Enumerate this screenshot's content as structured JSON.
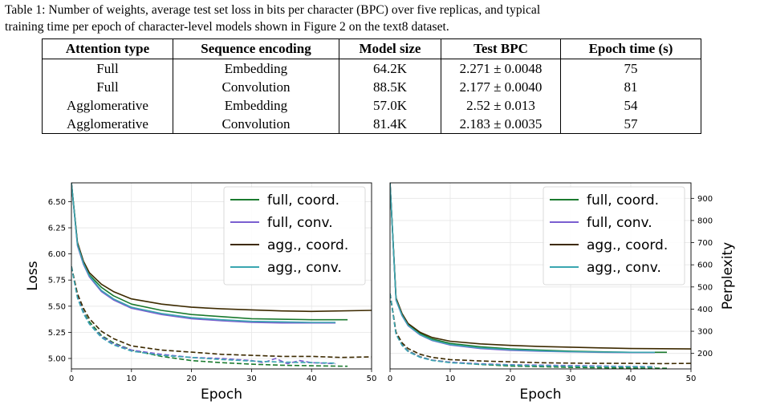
{
  "caption": {
    "line1": "Table 1: Number of weights, average test set loss in bits per character (BPC) over five replicas, and typical",
    "line2": "training time per epoch of character-level models shown in Figure 2 on the text8 dataset."
  },
  "table": {
    "headers": [
      "Attention type",
      "Sequence encoding",
      "Model size",
      "Test BPC",
      "Epoch time (s)"
    ],
    "rows": [
      [
        "Full",
        "Embedding",
        "64.2K",
        "2.271 ± 0.0048",
        "75"
      ],
      [
        "Full",
        "Convolution",
        "88.5K",
        "2.177 ± 0.0040",
        "81"
      ],
      [
        "Agglomerative",
        "Embedding",
        "57.0K",
        "2.52 ± 0.013",
        "54"
      ],
      [
        "Agglomerative",
        "Convolution",
        "81.4K",
        "2.183 ± 0.0035",
        "57"
      ]
    ]
  },
  "chart_data": [
    {
      "type": "line",
      "xlabel": "Epoch",
      "ylabel": "Loss",
      "xlim": [
        0,
        50
      ],
      "ylim": [
        4.9,
        6.68
      ],
      "xticks": [
        "0",
        "10",
        "20",
        "30",
        "40",
        "50"
      ],
      "yticks": [
        "5.00",
        "5.25",
        "5.50",
        "5.75",
        "6.00",
        "6.25",
        "6.50"
      ],
      "grid": true,
      "legend_position": "top-right",
      "series": [
        {
          "name": "full, coord.",
          "color": "#1a7a2e",
          "style": "solid",
          "x": [
            0,
            1,
            2,
            3,
            5,
            7,
            10,
            15,
            20,
            25,
            30,
            35,
            40,
            46
          ],
          "y": [
            6.68,
            6.1,
            5.92,
            5.8,
            5.68,
            5.6,
            5.52,
            5.46,
            5.42,
            5.4,
            5.38,
            5.375,
            5.37,
            5.37
          ]
        },
        {
          "name": "full, conv.",
          "color": "#7a5fd0",
          "style": "solid",
          "x": [
            0,
            1,
            2,
            3,
            5,
            7,
            10,
            15,
            20,
            25,
            30,
            35,
            40,
            44
          ],
          "y": [
            6.68,
            6.08,
            5.9,
            5.78,
            5.64,
            5.56,
            5.48,
            5.42,
            5.38,
            5.36,
            5.345,
            5.34,
            5.34,
            5.34
          ]
        },
        {
          "name": "agg., coord.",
          "color": "#3d2a00",
          "style": "solid",
          "x": [
            0,
            1,
            2,
            3,
            5,
            7,
            10,
            15,
            20,
            25,
            30,
            35,
            40,
            50
          ],
          "y": [
            6.68,
            6.11,
            5.93,
            5.82,
            5.71,
            5.64,
            5.57,
            5.52,
            5.49,
            5.475,
            5.465,
            5.455,
            5.45,
            5.46
          ]
        },
        {
          "name": "agg., conv.",
          "color": "#3aa6b0",
          "style": "solid",
          "x": [
            0,
            1,
            2,
            3,
            5,
            7,
            10,
            15,
            20,
            25,
            30,
            35,
            40,
            44
          ],
          "y": [
            6.68,
            6.09,
            5.91,
            5.79,
            5.65,
            5.57,
            5.49,
            5.43,
            5.39,
            5.37,
            5.355,
            5.35,
            5.345,
            5.345
          ]
        },
        {
          "name": "",
          "color": "#1a7a2e",
          "style": "dashed",
          "x": [
            0,
            1,
            2,
            3,
            5,
            7,
            10,
            15,
            20,
            25,
            30,
            35,
            40,
            46
          ],
          "y": [
            5.88,
            5.6,
            5.45,
            5.35,
            5.22,
            5.15,
            5.08,
            5.02,
            4.98,
            4.96,
            4.945,
            4.935,
            4.93,
            4.925
          ]
        },
        {
          "name": "",
          "color": "#7a5fd0",
          "style": "dashed",
          "x": [
            0,
            1,
            2,
            3,
            5,
            7,
            10,
            15,
            20,
            25,
            30,
            32,
            34,
            36,
            38,
            40,
            44
          ],
          "y": [
            5.88,
            5.59,
            5.44,
            5.33,
            5.21,
            5.14,
            5.08,
            5.04,
            5.01,
            5.0,
            4.98,
            4.96,
            5.0,
            4.95,
            4.98,
            4.96,
            4.95
          ]
        },
        {
          "name": "",
          "color": "#3d2a00",
          "style": "dashed",
          "x": [
            0,
            1,
            2,
            3,
            5,
            7,
            10,
            15,
            20,
            25,
            30,
            35,
            40,
            45,
            50
          ],
          "y": [
            5.88,
            5.62,
            5.48,
            5.38,
            5.26,
            5.19,
            5.12,
            5.08,
            5.06,
            5.04,
            5.03,
            5.02,
            5.02,
            5.01,
            5.015
          ]
        },
        {
          "name": "",
          "color": "#3aa6b0",
          "style": "dashed",
          "x": [
            0,
            1,
            2,
            3,
            5,
            7,
            10,
            15,
            20,
            25,
            30,
            35,
            40,
            44
          ],
          "y": [
            5.88,
            5.58,
            5.43,
            5.33,
            5.2,
            5.13,
            5.07,
            5.03,
            5.01,
            4.99,
            4.975,
            4.965,
            4.96,
            4.955
          ]
        }
      ]
    },
    {
      "type": "line",
      "xlabel": "Epoch",
      "ylabel": "Perplexity",
      "xlim": [
        0,
        50
      ],
      "ylim": [
        130,
        970
      ],
      "xticks": [
        "0",
        "10",
        "20",
        "30",
        "40",
        "50"
      ],
      "yticks": [
        "200",
        "300",
        "400",
        "500",
        "600",
        "700",
        "800",
        "900"
      ],
      "grid": true,
      "legend_position": "top-right",
      "series": [
        {
          "name": "full, coord.",
          "color": "#1a7a2e",
          "style": "solid",
          "x": [
            0,
            1,
            2,
            3,
            5,
            7,
            10,
            15,
            20,
            25,
            30,
            35,
            40,
            46
          ],
          "y": [
            970,
            445,
            375,
            330,
            290,
            265,
            245,
            230,
            220,
            215,
            210,
            207,
            205,
            205
          ]
        },
        {
          "name": "full, conv.",
          "color": "#7a5fd0",
          "style": "solid",
          "x": [
            0,
            1,
            2,
            3,
            5,
            7,
            10,
            15,
            20,
            25,
            30,
            35,
            40,
            44
          ],
          "y": [
            970,
            440,
            370,
            325,
            283,
            258,
            238,
            222,
            214,
            210,
            207,
            205,
            204,
            204
          ]
        },
        {
          "name": "agg., coord.",
          "color": "#3d2a00",
          "style": "solid",
          "x": [
            0,
            1,
            2,
            3,
            5,
            7,
            10,
            15,
            20,
            25,
            30,
            35,
            40,
            50
          ],
          "y": [
            970,
            450,
            380,
            335,
            295,
            272,
            255,
            243,
            236,
            231,
            228,
            225,
            222,
            220
          ]
        },
        {
          "name": "agg., conv.",
          "color": "#3aa6b0",
          "style": "solid",
          "x": [
            0,
            1,
            2,
            3,
            5,
            7,
            10,
            15,
            20,
            25,
            30,
            35,
            40,
            44
          ],
          "y": [
            970,
            442,
            372,
            327,
            285,
            260,
            240,
            225,
            217,
            212,
            208,
            206,
            205,
            205
          ]
        },
        {
          "name": "",
          "color": "#1a7a2e",
          "style": "dashed",
          "x": [
            0,
            1,
            2,
            3,
            5,
            7,
            10,
            15,
            20,
            25,
            30,
            35,
            40,
            46
          ],
          "y": [
            470,
            290,
            240,
            212,
            185,
            170,
            160,
            150,
            143,
            140,
            137,
            135,
            134,
            133
          ]
        },
        {
          "name": "",
          "color": "#7a5fd0",
          "style": "dashed",
          "x": [
            0,
            1,
            2,
            3,
            5,
            7,
            10,
            15,
            20,
            25,
            30,
            35,
            40,
            44
          ],
          "y": [
            470,
            288,
            238,
            210,
            184,
            169,
            160,
            153,
            149,
            147,
            145,
            143,
            141,
            140
          ]
        },
        {
          "name": "",
          "color": "#3d2a00",
          "style": "dashed",
          "x": [
            0,
            1,
            2,
            3,
            5,
            7,
            10,
            15,
            20,
            25,
            30,
            35,
            40,
            45,
            50
          ],
          "y": [
            470,
            295,
            248,
            222,
            196,
            182,
            172,
            166,
            162,
            158,
            156,
            155,
            155,
            154,
            155
          ]
        },
        {
          "name": "",
          "color": "#3aa6b0",
          "style": "dashed",
          "x": [
            0,
            1,
            2,
            3,
            5,
            7,
            10,
            15,
            20,
            25,
            30,
            35,
            40,
            44
          ],
          "y": [
            470,
            286,
            236,
            208,
            182,
            168,
            158,
            151,
            147,
            144,
            142,
            141,
            140,
            139
          ]
        }
      ]
    }
  ]
}
